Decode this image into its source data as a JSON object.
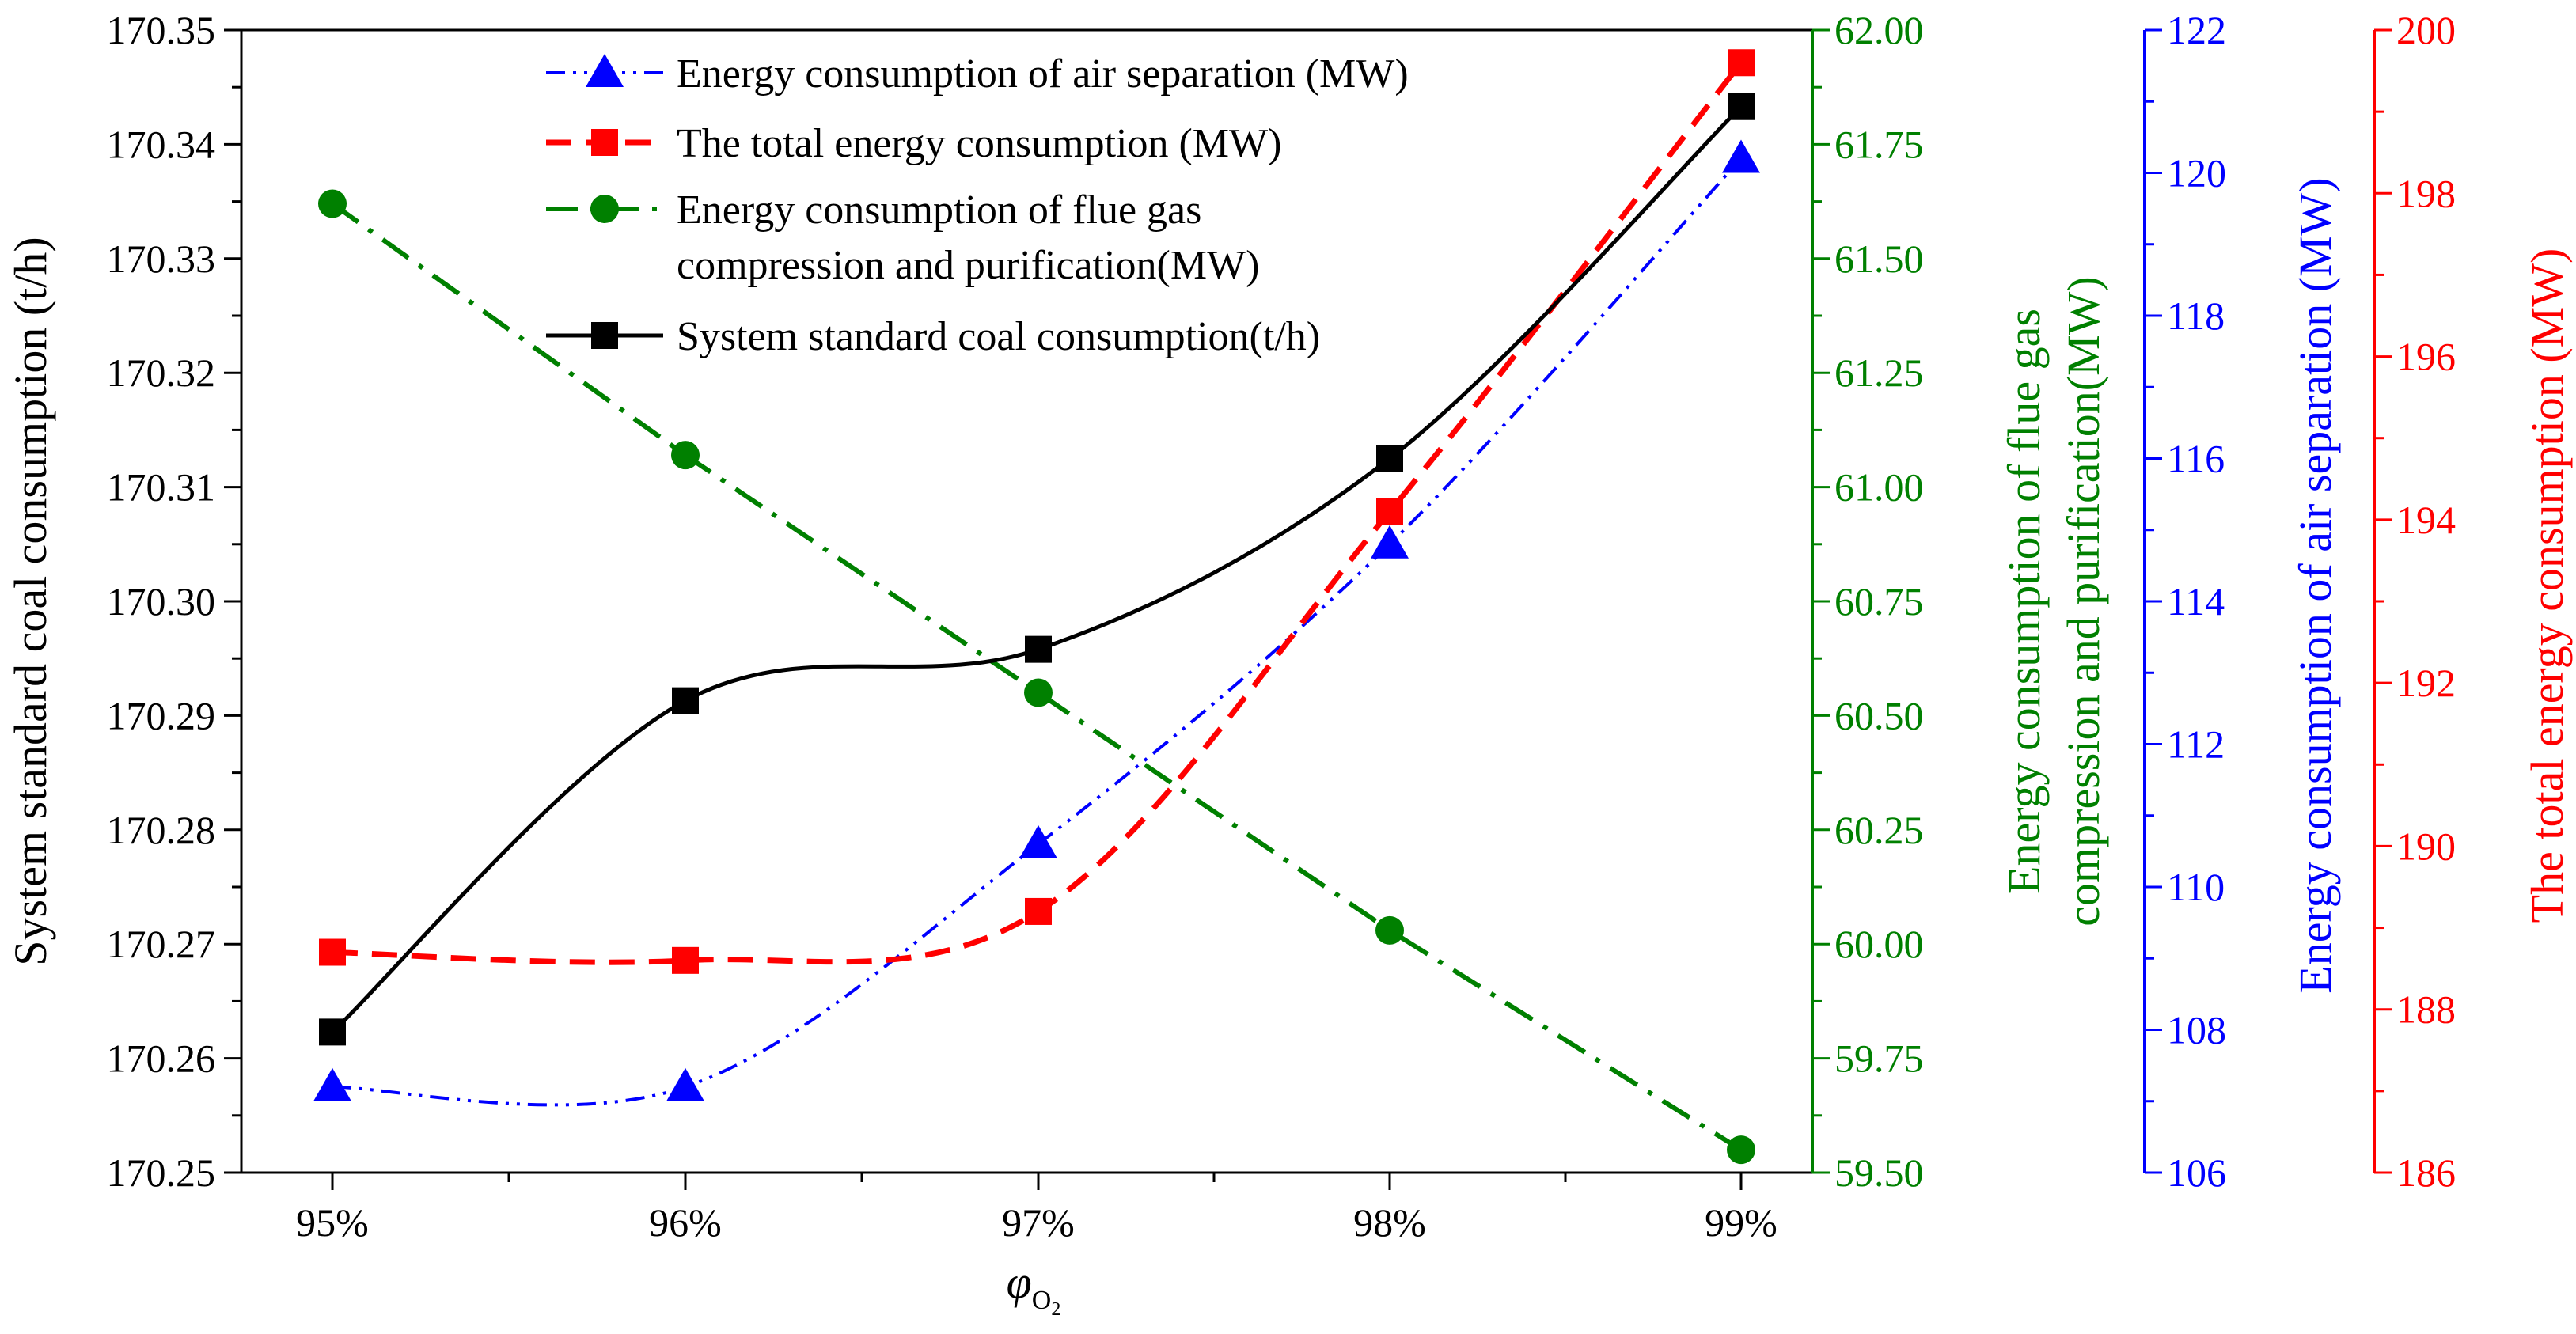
{
  "chart_data": {
    "type": "line",
    "categories": [
      "95%",
      "96%",
      "97%",
      "98%",
      "99%"
    ],
    "xlabel": "φ",
    "xlabel_subscript": "O",
    "xlabel_subscript2": "2",
    "axes": {
      "left": {
        "label": "System standard coal consumption (t/h)",
        "ylim": [
          170.25,
          170.35
        ],
        "ticks": [
          "170.25",
          "170.26",
          "170.27",
          "170.28",
          "170.29",
          "170.30",
          "170.31",
          "170.32",
          "170.33",
          "170.34",
          "170.35"
        ],
        "color": "#000000"
      },
      "green": {
        "label_line1": "Energy consumption of flue gas",
        "label_line2": "compression and purification(MW)",
        "ylim": [
          59.5,
          62.0
        ],
        "ticks": [
          "59.50",
          "59.75",
          "60.00",
          "60.25",
          "60.50",
          "60.75",
          "61.00",
          "61.25",
          "61.50",
          "61.75",
          "62.00"
        ],
        "color": "#008000"
      },
      "blue": {
        "label": "Energy consumption of air separation (MW)",
        "ylim": [
          106,
          122
        ],
        "ticks": [
          "106",
          "108",
          "110",
          "112",
          "114",
          "116",
          "118",
          "120",
          "122"
        ],
        "color": "#0000ff"
      },
      "red": {
        "label": "The total energy consumption (MW)",
        "ylim": [
          186,
          200
        ],
        "ticks": [
          "186",
          "188",
          "190",
          "192",
          "194",
          "196",
          "198",
          "200"
        ],
        "color": "#ff0000"
      }
    },
    "series": [
      {
        "name": "Energy consumption of air separation (MW)",
        "axis": "blue",
        "marker": "triangle",
        "values": [
          107.2,
          107.2,
          110.6,
          114.8,
          120.2
        ]
      },
      {
        "name": "The total energy consumption (MW)",
        "axis": "red",
        "marker": "square",
        "values": [
          188.7,
          188.6,
          189.2,
          194.1,
          199.6
        ]
      },
      {
        "name": "Energy consumption of flue gas compression and purification(MW)",
        "axis": "green",
        "marker": "circle",
        "values": [
          61.62,
          61.07,
          60.55,
          60.03,
          59.55
        ]
      },
      {
        "name": "System standard coal consumption(t/h)",
        "axis": "left",
        "marker": "square",
        "values": [
          170.2623,
          170.2913,
          170.2958,
          170.3125,
          170.3433
        ]
      }
    ],
    "legend": [
      {
        "label": "Energy consumption of air separation (MW)"
      },
      {
        "label": "The total energy consumption (MW)"
      },
      {
        "label_line1": "Energy consumption of flue gas",
        "label_line2": "compression and purification(MW)"
      },
      {
        "label": "System standard coal consumption(t/h)"
      }
    ],
    "legend_position": "top-center",
    "grid": false
  }
}
